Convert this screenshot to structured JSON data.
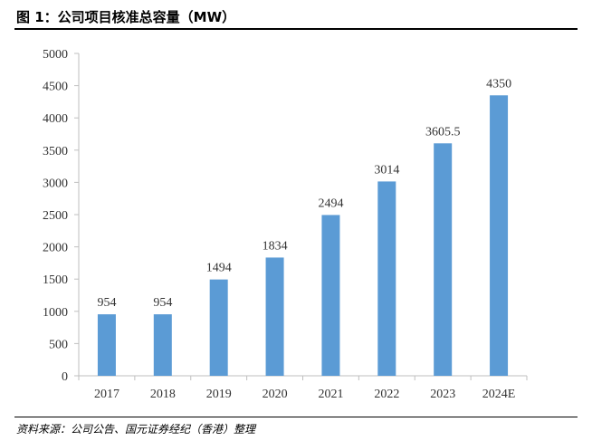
{
  "title": "图 1：公司项目核准总容量（MW）",
  "source": "资料来源：公司公告、国元证券经纪（香港）整理",
  "colors": {
    "bar": "#5b9bd5",
    "axis": "#bfbfbf",
    "text": "#333333"
  },
  "chart_data": {
    "type": "bar",
    "title": "图 1：公司项目核准总容量（MW）",
    "xlabel": "",
    "ylabel": "",
    "categories": [
      "2017",
      "2018",
      "2019",
      "2020",
      "2021",
      "2022",
      "2023",
      "2024E"
    ],
    "values": [
      954,
      954,
      1494,
      1834,
      2494,
      3014,
      3605.5,
      4350
    ],
    "data_labels": [
      "954",
      "954",
      "1494",
      "1834",
      "2494",
      "3014",
      "3605.5",
      "4350"
    ],
    "ylim": [
      0,
      5000
    ],
    "yticks": [
      0,
      500,
      1000,
      1500,
      2000,
      2500,
      3000,
      3500,
      4000,
      4500,
      5000
    ],
    "grid": false,
    "legend": "none"
  }
}
